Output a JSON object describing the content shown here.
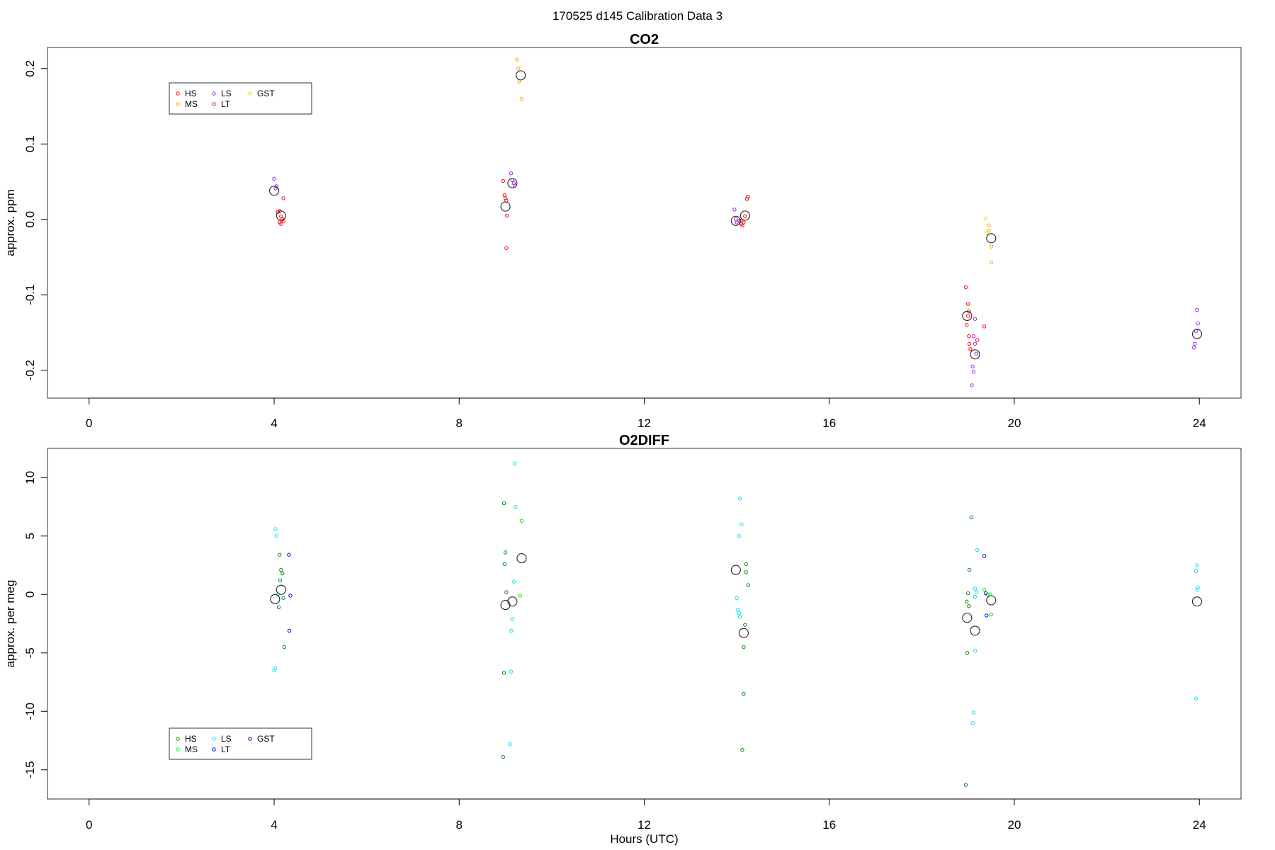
{
  "main_title": "170525   d145   Calibration Data 3",
  "chart_data": [
    {
      "type": "scatter",
      "title": "CO2",
      "ylabel": "approx. ppm",
      "xlabel": "",
      "xlim": [
        -0.9,
        24.9
      ],
      "ylim": [
        -0.237,
        0.228
      ],
      "x_ticks": [
        0,
        4,
        8,
        12,
        16,
        20,
        24
      ],
      "y_ticks": [
        -0.2,
        -0.1,
        0.0,
        0.1,
        0.2
      ],
      "y_tick_labels": [
        "-0.2",
        "-0.1",
        "0.0",
        "0.1",
        "0.2"
      ],
      "legend": {
        "placement": "top-left",
        "entries": [
          {
            "name": "HS",
            "color": "#ff0000"
          },
          {
            "name": "MS",
            "color": "#ffa500"
          },
          {
            "name": "LS",
            "color": "#a020f0"
          },
          {
            "name": "LT",
            "color": "#b22222"
          },
          {
            "name": "GST",
            "color": "#ffd700"
          }
        ]
      },
      "series": [
        {
          "name": "HS",
          "color": "#ff0000",
          "points": [
            [
              4.08,
              0.01
            ],
            [
              4.12,
              0.011
            ],
            [
              4.15,
              0.004
            ],
            [
              4.18,
              0.0
            ],
            [
              4.12,
              -0.004
            ],
            [
              4.15,
              -0.006
            ],
            [
              4.2,
              -0.002
            ],
            [
              4.2,
              0.028
            ],
            [
              8.95,
              0.051
            ],
            [
              8.98,
              0.032
            ],
            [
              9.0,
              0.028
            ],
            [
              9.02,
              0.025
            ],
            [
              9.03,
              0.005
            ],
            [
              9.02,
              -0.038
            ],
            [
              14.08,
              -0.002
            ],
            [
              14.1,
              -0.006
            ],
            [
              14.12,
              -0.008
            ],
            [
              14.15,
              -0.004
            ],
            [
              14.18,
              0.004
            ],
            [
              14.22,
              0.027
            ],
            [
              14.24,
              0.03
            ],
            [
              18.95,
              -0.09
            ],
            [
              19.0,
              -0.112
            ],
            [
              19.02,
              -0.122
            ],
            [
              19.0,
              -0.128
            ],
            [
              18.97,
              -0.14
            ],
            [
              19.02,
              -0.155
            ],
            [
              19.03,
              -0.165
            ],
            [
              19.05,
              -0.172
            ],
            [
              19.2,
              -0.16
            ],
            [
              19.35,
              -0.142
            ]
          ]
        },
        {
          "name": "MS",
          "color": "#ffa500",
          "points": [
            [
              9.25,
              0.212
            ],
            [
              9.28,
              0.2
            ],
            [
              9.3,
              0.183
            ],
            [
              9.35,
              0.16
            ],
            [
              19.45,
              -0.008
            ],
            [
              19.5,
              -0.036
            ],
            [
              19.5,
              -0.057
            ],
            [
              19.45,
              -0.015
            ]
          ]
        },
        {
          "name": "LS",
          "color": "#a020f0",
          "points": [
            [
              4.0,
              0.054
            ],
            [
              4.05,
              0.044
            ],
            [
              4.03,
              0.041
            ],
            [
              9.12,
              0.061
            ],
            [
              9.15,
              0.052
            ],
            [
              9.18,
              0.048
            ],
            [
              9.2,
              0.045
            ],
            [
              13.95,
              0.013
            ],
            [
              13.98,
              0.0
            ],
            [
              14.0,
              -0.004
            ],
            [
              14.05,
              -0.002
            ],
            [
              19.15,
              -0.132
            ],
            [
              19.12,
              -0.155
            ],
            [
              19.15,
              -0.165
            ],
            [
              19.18,
              -0.178
            ],
            [
              19.1,
              -0.195
            ],
            [
              19.12,
              -0.202
            ],
            [
              19.08,
              -0.22
            ],
            [
              23.95,
              -0.12
            ],
            [
              23.97,
              -0.138
            ],
            [
              23.93,
              -0.148
            ],
            [
              23.9,
              -0.165
            ],
            [
              23.88,
              -0.17
            ]
          ]
        },
        {
          "name": "LT",
          "color": "#b22222",
          "points": []
        },
        {
          "name": "GST",
          "color": "#ffd700",
          "points": [
            [
              19.38,
              0.001
            ],
            [
              19.4,
              -0.018
            ]
          ]
        }
      ],
      "means": [
        [
          4.0,
          0.038
        ],
        [
          4.15,
          0.005
        ],
        [
          9.0,
          0.017
        ],
        [
          9.15,
          0.048
        ],
        [
          9.33,
          0.191
        ],
        [
          13.98,
          -0.002
        ],
        [
          14.18,
          0.005
        ],
        [
          18.98,
          -0.128
        ],
        [
          19.15,
          -0.179
        ],
        [
          19.5,
          -0.025
        ],
        [
          23.95,
          -0.152
        ]
      ]
    },
    {
      "type": "scatter",
      "title": "O2DIFF",
      "ylabel": "approx. per meg",
      "xlabel": "Hours (UTC)",
      "xlim": [
        -0.9,
        24.9
      ],
      "ylim": [
        -17.5,
        12.5
      ],
      "x_ticks": [
        0,
        4,
        8,
        12,
        16,
        20,
        24
      ],
      "y_ticks": [
        -15,
        -10,
        -5,
        0,
        5,
        10
      ],
      "y_tick_labels": [
        "-15",
        "-10",
        "-5",
        "0",
        "5",
        "10"
      ],
      "legend": {
        "placement": "bottom-left",
        "entries": [
          {
            "name": "HS",
            "color": "#008b00"
          },
          {
            "name": "MS",
            "color": "#00ee00"
          },
          {
            "name": "LS",
            "color": "#00e5ee"
          },
          {
            "name": "LT",
            "color": "#0000ff"
          },
          {
            "name": "GST",
            "color": "#00008b"
          }
        ]
      },
      "series": [
        {
          "name": "HS",
          "color": "#008b00",
          "points": [
            [
              4.12,
              3.4
            ],
            [
              4.15,
              2.1
            ],
            [
              4.18,
              1.8
            ],
            [
              4.13,
              1.2
            ],
            [
              4.2,
              -0.3
            ],
            [
              4.1,
              -1.1
            ],
            [
              4.22,
              -4.5
            ],
            [
              8.97,
              7.8
            ],
            [
              9.0,
              3.6
            ],
            [
              8.98,
              2.6
            ],
            [
              9.02,
              0.2
            ],
            [
              8.97,
              -6.7
            ],
            [
              8.95,
              -13.9
            ],
            [
              14.2,
              2.6
            ],
            [
              14.2,
              1.9
            ],
            [
              14.25,
              0.8
            ],
            [
              14.18,
              -2.6
            ],
            [
              14.15,
              -4.5
            ],
            [
              14.15,
              -8.5
            ],
            [
              14.12,
              -13.3
            ],
            [
              19.07,
              6.6
            ],
            [
              19.03,
              2.1
            ],
            [
              19.0,
              0.1
            ],
            [
              18.97,
              -0.6
            ],
            [
              19.02,
              -1.0
            ],
            [
              18.98,
              -5.0
            ],
            [
              18.95,
              -16.3
            ]
          ]
        },
        {
          "name": "MS",
          "color": "#00ee00",
          "points": [
            [
              9.35,
              6.3
            ],
            [
              9.32,
              -0.1
            ],
            [
              19.35,
              0.4
            ],
            [
              19.42,
              0.0
            ],
            [
              19.48,
              0.0
            ],
            [
              19.5,
              -1.7
            ]
          ]
        },
        {
          "name": "LS",
          "color": "#00e5ee",
          "points": [
            [
              4.03,
              5.6
            ],
            [
              4.05,
              5.0
            ],
            [
              4.08,
              0.0
            ],
            [
              4.02,
              -6.3
            ],
            [
              4.0,
              -6.5
            ],
            [
              9.2,
              11.2
            ],
            [
              9.22,
              7.5
            ],
            [
              9.18,
              1.1
            ],
            [
              9.15,
              -2.1
            ],
            [
              9.13,
              -3.1
            ],
            [
              9.12,
              -6.6
            ],
            [
              9.1,
              -12.8
            ],
            [
              14.07,
              8.2
            ],
            [
              14.1,
              6.0
            ],
            [
              14.05,
              5.0
            ],
            [
              14.0,
              -0.3
            ],
            [
              14.02,
              -1.3
            ],
            [
              14.05,
              -1.6
            ],
            [
              14.07,
              -1.9
            ],
            [
              19.2,
              3.8
            ],
            [
              19.15,
              0.5
            ],
            [
              19.18,
              0.2
            ],
            [
              19.15,
              -0.2
            ],
            [
              19.15,
              -4.8
            ],
            [
              19.12,
              -10.1
            ],
            [
              19.1,
              -11.0
            ],
            [
              23.95,
              2.5
            ],
            [
              23.93,
              2.0
            ],
            [
              23.97,
              0.6
            ],
            [
              23.95,
              0.4
            ],
            [
              23.93,
              -8.9
            ]
          ]
        },
        {
          "name": "LT",
          "color": "#0000ff",
          "points": [
            [
              4.32,
              3.4
            ],
            [
              4.35,
              -0.1
            ],
            [
              4.33,
              -3.1
            ],
            [
              19.35,
              3.3
            ],
            [
              19.38,
              0.1
            ],
            [
              19.4,
              -1.8
            ]
          ]
        },
        {
          "name": "GST",
          "color": "#00008b",
          "points": []
        }
      ],
      "means": [
        [
          4.02,
          -0.4
        ],
        [
          4.15,
          0.4
        ],
        [
          9.0,
          -0.9
        ],
        [
          9.15,
          -0.6
        ],
        [
          9.35,
          3.1
        ],
        [
          13.98,
          2.1
        ],
        [
          14.15,
          -3.3
        ],
        [
          18.98,
          -2.0
        ],
        [
          19.15,
          -3.1
        ],
        [
          19.5,
          -0.5
        ],
        [
          23.95,
          -0.6
        ]
      ]
    }
  ]
}
